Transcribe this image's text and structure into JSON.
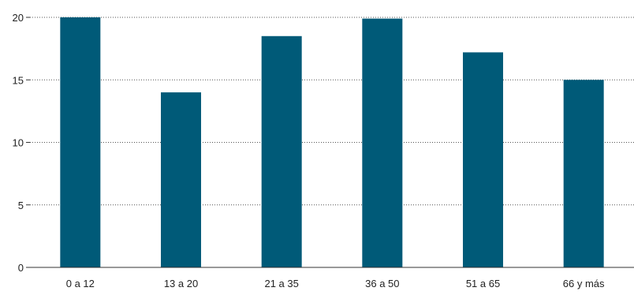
{
  "chart_data": {
    "type": "bar",
    "title": "",
    "xlabel": "",
    "ylabel": "",
    "categories": [
      "0 a 12",
      "13 a 20",
      "21 a 35",
      "36 a 50",
      "51 a 65",
      "66 y más"
    ],
    "values": [
      20.1,
      14.0,
      18.5,
      19.9,
      17.2,
      15.0
    ],
    "ylim": [
      0,
      20
    ],
    "yticks": [
      0,
      5,
      10,
      15,
      20
    ],
    "ytick_labels": [
      "0",
      "5",
      "10",
      "15",
      "20"
    ],
    "grid": true,
    "legend": "none",
    "bar_color": "#005a78"
  }
}
